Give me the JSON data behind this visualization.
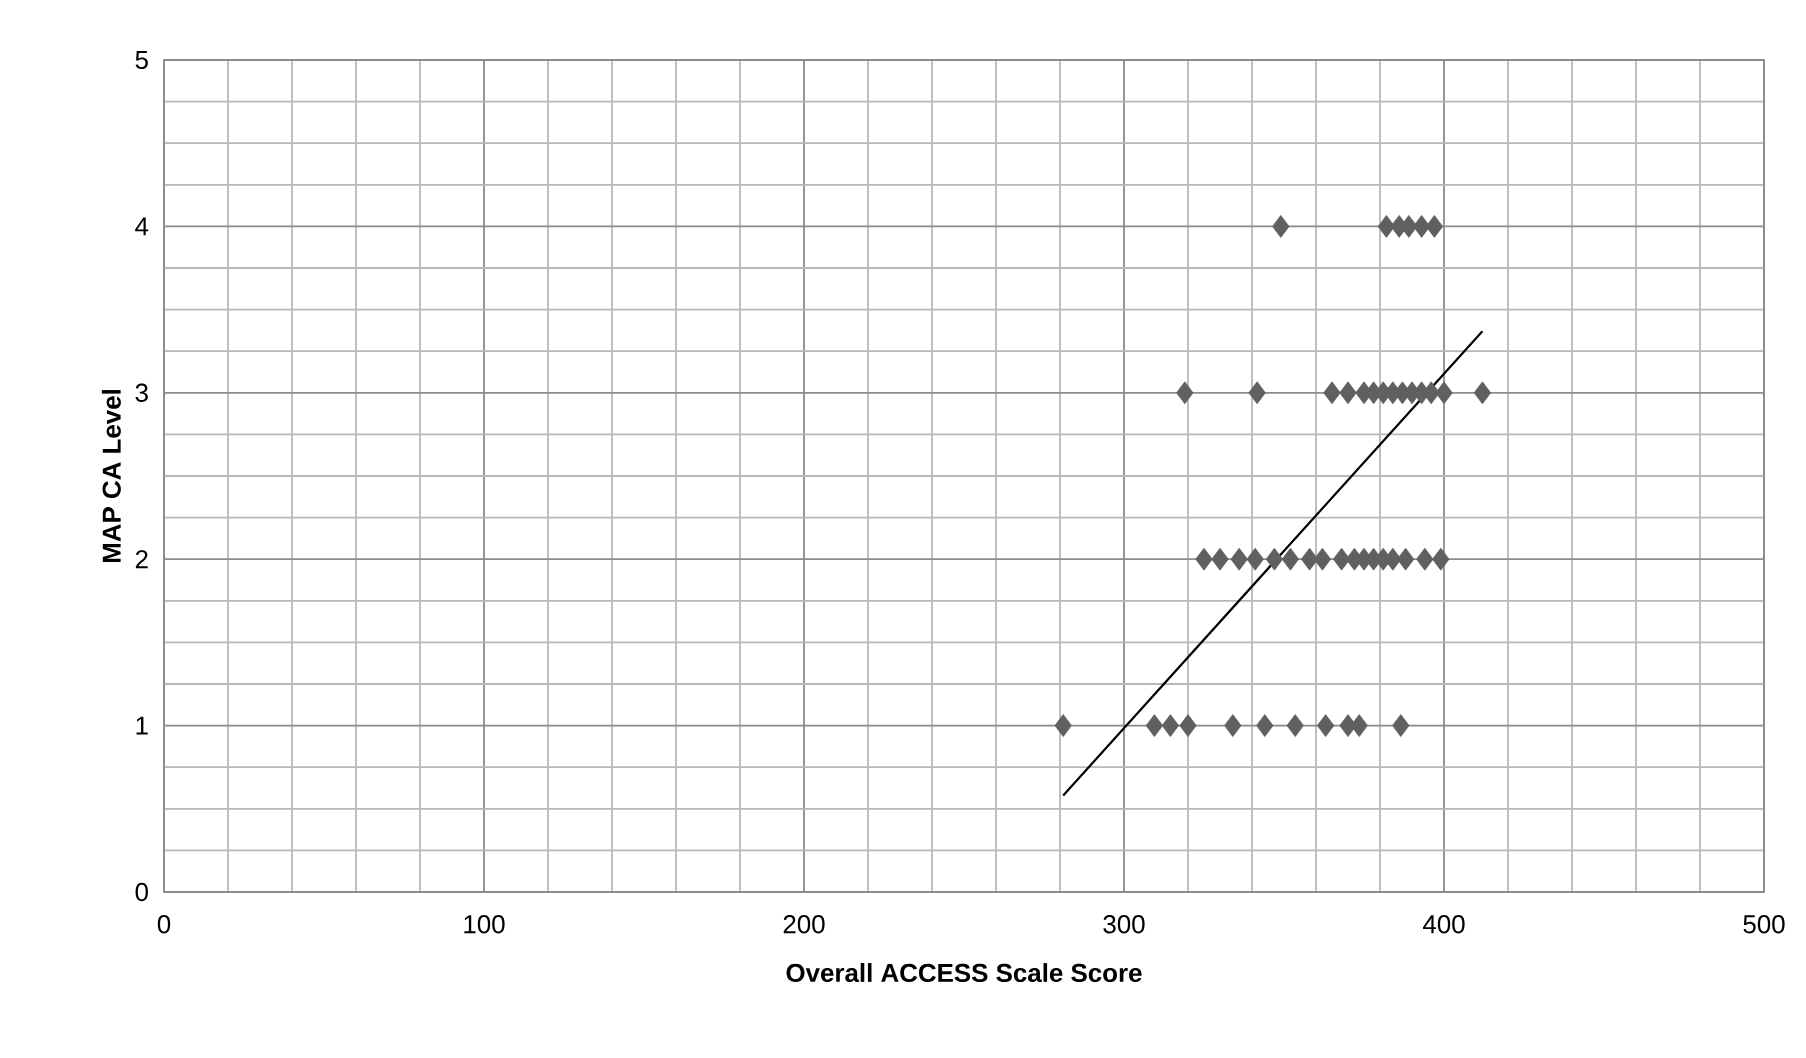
{
  "chart_data": {
    "type": "scatter",
    "xlabel": "Overall ACCESS Scale Score",
    "ylabel": "MAP CA Level",
    "xlim": [
      0,
      500
    ],
    "ylim": [
      0,
      5
    ],
    "xticks": [
      0,
      100,
      200,
      300,
      400,
      500
    ],
    "yticks": [
      0,
      1,
      2,
      3,
      4,
      5
    ],
    "grid": true,
    "marker": "diamond",
    "series": [
      {
        "color": "#606060",
        "x": [
          281,
          309.5,
          314.5,
          320,
          334,
          344,
          353.5,
          363,
          370,
          373.5,
          386.5,
          325,
          330,
          336,
          341,
          347,
          352,
          358,
          362,
          368,
          372,
          375,
          378,
          381,
          384,
          388,
          394,
          399,
          319,
          341.6,
          365,
          370,
          375,
          378,
          381,
          384,
          387,
          390,
          393,
          396,
          400,
          412,
          349,
          382,
          386,
          389,
          393,
          397
        ],
        "values": [
          1,
          1,
          1,
          1,
          1,
          1,
          1,
          1,
          1,
          1,
          1,
          2,
          2,
          2,
          2,
          2,
          2,
          2,
          2,
          2,
          2,
          2,
          2,
          2,
          2,
          2,
          2,
          2,
          3,
          3,
          3,
          3,
          3,
          3,
          3,
          3,
          3,
          3,
          3,
          3,
          3,
          3,
          4,
          4,
          4,
          4,
          4,
          4
        ]
      },
      {
        "type": "line",
        "color": "#000000",
        "marker": "none",
        "line_style": "solid",
        "x": [
          281,
          412
        ],
        "values": [
          0.58,
          3.37
        ]
      }
    ]
  }
}
